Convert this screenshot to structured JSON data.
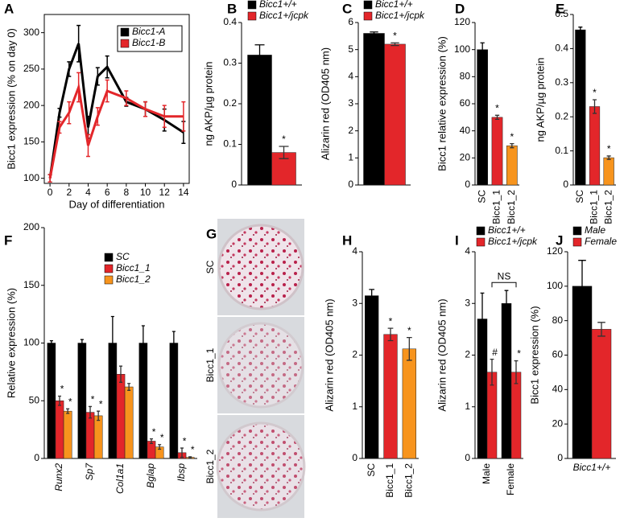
{
  "chart_data": [
    {
      "type": "line",
      "panel": "A",
      "ylabel": "Bicc1 expression (% on day 0)",
      "xlabel": "Day of differentiation",
      "x": [
        0,
        1,
        2,
        3,
        4,
        5,
        6,
        8,
        10,
        12,
        14
      ],
      "xlim": [
        -0.6,
        14.6
      ],
      "xticks": [
        0,
        2,
        4,
        6,
        8,
        10,
        12,
        14
      ],
      "ylim": [
        93,
        325
      ],
      "yticks": [
        100,
        150,
        200,
        250,
        300
      ],
      "series": [
        {
          "name": "Bicc1-A",
          "color": "#000000",
          "values": [
            100,
            190,
            250,
            285,
            170,
            240,
            253,
            205,
            195,
            180,
            163
          ],
          "errors": [
            5,
            6,
            10,
            25,
            15,
            12,
            15,
            6,
            10,
            15,
            15
          ]
        },
        {
          "name": "Bicc1-B",
          "color": "#e3262a",
          "values": [
            100,
            170,
            190,
            225,
            145,
            185,
            220,
            210,
            195,
            185,
            185
          ],
          "errors": [
            5,
            8,
            15,
            20,
            15,
            12,
            15,
            10,
            10,
            15,
            20
          ]
        }
      ]
    },
    {
      "type": "bar",
      "panel": "B",
      "ylabel": "ng AKP/µg protein",
      "ylim": [
        0,
        0.4
      ],
      "yticks": [
        0,
        0.1,
        0.2,
        0.3,
        0.4
      ],
      "series": [
        {
          "name": "Bicc1+/+",
          "color": "#000000",
          "values": [
            0.32
          ],
          "errors": [
            0.025
          ],
          "significance": [
            null
          ]
        },
        {
          "name": "Bicc1+/jcpk",
          "color": "#e3262a",
          "values": [
            0.08
          ],
          "errors": [
            0.015
          ],
          "significance": [
            "*"
          ]
        }
      ]
    },
    {
      "type": "bar",
      "panel": "C",
      "ylabel": "Alizarin red (OD405 nm)",
      "ylim": [
        0,
        6
      ],
      "yticks": [
        0,
        1,
        2,
        3,
        4,
        5,
        6
      ],
      "series": [
        {
          "name": "Bicc1+/+",
          "color": "#000000",
          "values": [
            5.6
          ],
          "errors": [
            0.05
          ],
          "significance": [
            null
          ]
        },
        {
          "name": "Bicc1+/jcpk",
          "color": "#e3262a",
          "values": [
            5.2
          ],
          "errors": [
            0.05
          ],
          "significance": [
            "*"
          ]
        }
      ]
    },
    {
      "type": "bar",
      "panel": "D",
      "ylabel": "Bicc1 relative expression (%)",
      "ylim": [
        0,
        120
      ],
      "yticks": [
        0,
        20,
        40,
        60,
        80,
        100,
        120
      ],
      "categories": [
        "SC",
        "Bicc1_1",
        "Bicc1_2"
      ],
      "values": [
        100,
        50,
        29
      ],
      "errors": [
        5,
        1.5,
        1.5
      ],
      "colors": [
        "#000000",
        "#e3262a",
        "#f7941d"
      ],
      "significance": [
        null,
        "*",
        "*"
      ]
    },
    {
      "type": "bar",
      "panel": "E",
      "ylabel": "ng AKP/µg protein",
      "ylim": [
        0,
        0.5
      ],
      "yticks": [
        0,
        0.1,
        0.2,
        0.3,
        0.4,
        0.5
      ],
      "categories": [
        "SC",
        "Bicc1_1",
        "Bicc1_2"
      ],
      "values": [
        0.455,
        0.23,
        0.08
      ],
      "errors": [
        0.008,
        0.02,
        0.005
      ],
      "colors": [
        "#000000",
        "#e3262a",
        "#f7941d"
      ],
      "significance": [
        null,
        "*",
        "*"
      ]
    },
    {
      "type": "bar",
      "panel": "F",
      "ylabel": "Relative expression (%)",
      "ylim": [
        0,
        200
      ],
      "yticks": [
        0,
        50,
        100,
        150,
        200
      ],
      "categories": [
        "Runx2",
        "Sp7",
        "Col1a1",
        "Bglap",
        "Ibsp"
      ],
      "series": [
        {
          "name": "SC",
          "color": "#000000",
          "values": [
            100,
            100,
            100,
            100,
            100
          ],
          "errors": [
            2,
            3,
            23,
            15,
            10
          ],
          "significance": [
            null,
            null,
            null,
            null,
            null
          ]
        },
        {
          "name": "Bicc1_1",
          "color": "#e3262a",
          "values": [
            50,
            40,
            73,
            15,
            5
          ],
          "errors": [
            4,
            5,
            7,
            2,
            4
          ],
          "significance": [
            "*",
            "*",
            null,
            "*",
            "*"
          ]
        },
        {
          "name": "Bicc1_2",
          "color": "#f7941d",
          "values": [
            41,
            37,
            62,
            10,
            1
          ],
          "errors": [
            2,
            4,
            3,
            2,
            0.5
          ],
          "significance": [
            "*",
            "*",
            null,
            "*",
            "*"
          ]
        }
      ]
    },
    {
      "type": "bar",
      "panel": "H",
      "ylabel": "Alizarin red (OD405 nm)",
      "ylim": [
        0,
        4
      ],
      "yticks": [
        0,
        1,
        2,
        3,
        4
      ],
      "categories": [
        "SC",
        "Bicc1_1",
        "Bicc1_2"
      ],
      "values": [
        3.15,
        2.4,
        2.12
      ],
      "errors": [
        0.12,
        0.12,
        0.22
      ],
      "colors": [
        "#000000",
        "#e3262a",
        "#f7941d"
      ],
      "significance": [
        null,
        "*",
        "*"
      ]
    },
    {
      "type": "bar",
      "panel": "I",
      "ylabel": "Alizarin red (OD405 nm)",
      "ylim": [
        0,
        4
      ],
      "yticks": [
        0,
        1,
        2,
        3,
        4
      ],
      "categories": [
        "Male",
        "Female"
      ],
      "annotation": "NS",
      "series": [
        {
          "name": "Bicc1+/+",
          "color": "#000000",
          "values": [
            2.7,
            3.0
          ],
          "errors": [
            0.5,
            0.25
          ],
          "significance": [
            null,
            null
          ]
        },
        {
          "name": "Bicc1+/jcpk",
          "color": "#e3262a",
          "values": [
            1.67,
            1.67
          ],
          "errors": [
            0.25,
            0.22
          ],
          "significance": [
            "#",
            "*"
          ]
        }
      ]
    },
    {
      "type": "bar",
      "panel": "J",
      "ylabel": "Bicc1 expression (%)",
      "ylim": [
        0,
        120
      ],
      "yticks": [
        0,
        20,
        40,
        60,
        80,
        100,
        120
      ],
      "categories": [
        "Bicc1+/+"
      ],
      "series": [
        {
          "name": "Male",
          "color": "#000000",
          "values": [
            100
          ],
          "errors": [
            15
          ],
          "significance": [
            null
          ]
        },
        {
          "name": "Female",
          "color": "#e3262a",
          "values": [
            75
          ],
          "errors": [
            4
          ],
          "significance": [
            null
          ]
        }
      ]
    }
  ],
  "images": {
    "panel": "G",
    "labels": [
      "SC",
      "Bicc1_1",
      "Bicc1_2"
    ]
  }
}
